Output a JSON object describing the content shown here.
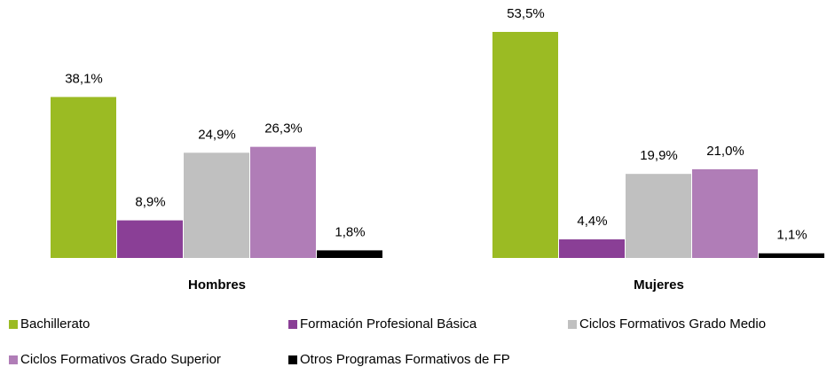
{
  "chart_data": {
    "type": "bar",
    "categories": [
      "Hombres",
      "Mujeres"
    ],
    "series": [
      {
        "name": "Bachillerato",
        "color": "#9bbb23",
        "values": [
          38.1,
          53.5
        ],
        "value_labels": [
          "38,1%",
          "53,5%"
        ]
      },
      {
        "name": "Formación Profesional Básica",
        "color": "#8a3f96",
        "values": [
          8.9,
          4.4
        ],
        "value_labels": [
          "8,9%",
          "4,4%"
        ]
      },
      {
        "name": "Ciclos Formativos Grado Medio",
        "color": "#c0c0c0",
        "values": [
          24.9,
          19.9
        ],
        "value_labels": [
          "24,9%",
          "19,9%"
        ]
      },
      {
        "name": "Ciclos Formativos Grado Superior",
        "color": "#b07db7",
        "values": [
          26.3,
          21.0
        ],
        "value_labels": [
          "26,3%",
          "21,0%"
        ]
      },
      {
        "name": "Otros Programas Formativos de FP",
        "color": "#000000",
        "values": [
          1.8,
          1.1
        ],
        "value_labels": [
          "1,8%",
          "1,1%"
        ]
      }
    ],
    "legend": "bottom"
  }
}
